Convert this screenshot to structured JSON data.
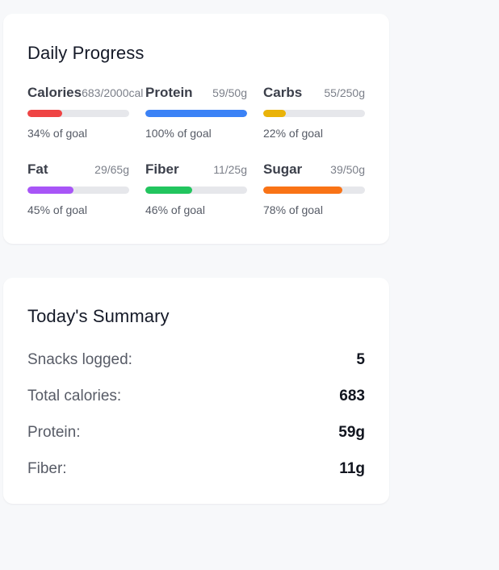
{
  "daily_progress": {
    "title": "Daily Progress",
    "nutrients": [
      {
        "name": "Calories",
        "amount": "683/2000cal",
        "goal_text": "34% of goal",
        "percent": 34,
        "color": "#ef4444"
      },
      {
        "name": "Protein",
        "amount": "59/50g",
        "goal_text": "100% of goal",
        "percent": 100,
        "color": "#3b82f6"
      },
      {
        "name": "Carbs",
        "amount": "55/250g",
        "goal_text": "22% of goal",
        "percent": 22,
        "color": "#eab308"
      },
      {
        "name": "Fat",
        "amount": "29/65g",
        "goal_text": "45% of goal",
        "percent": 45,
        "color": "#a855f7"
      },
      {
        "name": "Fiber",
        "amount": "11/25g",
        "goal_text": "46% of goal",
        "percent": 46,
        "color": "#22c55e"
      },
      {
        "name": "Sugar",
        "amount": "39/50g",
        "goal_text": "78% of goal",
        "percent": 78,
        "color": "#f97316"
      }
    ]
  },
  "summary": {
    "title": "Today's Summary",
    "rows": [
      {
        "label": "Snacks logged:",
        "value": "5"
      },
      {
        "label": "Total calories:",
        "value": "683"
      },
      {
        "label": "Protein:",
        "value": "59g"
      },
      {
        "label": "Fiber:",
        "value": "11g"
      }
    ]
  }
}
